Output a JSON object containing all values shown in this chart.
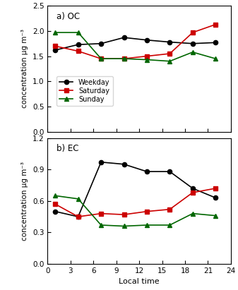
{
  "x_ticks": [
    0,
    3,
    6,
    9,
    12,
    15,
    18,
    21,
    24
  ],
  "x_values": [
    1,
    4,
    7,
    10,
    13,
    16,
    19,
    22
  ],
  "OC": {
    "weekday": [
      1.62,
      1.73,
      1.75,
      1.87,
      1.82,
      1.78,
      1.75,
      1.77
    ],
    "saturday": [
      1.7,
      1.6,
      1.45,
      1.45,
      1.5,
      1.55,
      1.97,
      2.13
    ],
    "sunday": [
      1.97,
      1.97,
      1.45,
      1.45,
      1.43,
      1.4,
      1.58,
      1.45
    ]
  },
  "EC": {
    "weekday": [
      0.5,
      0.45,
      0.97,
      0.95,
      0.88,
      0.88,
      0.72,
      0.63
    ],
    "saturday": [
      0.57,
      0.45,
      0.48,
      0.47,
      0.5,
      0.52,
      0.68,
      0.72
    ],
    "sunday": [
      0.65,
      0.62,
      0.37,
      0.36,
      0.37,
      0.37,
      0.48,
      0.46
    ]
  },
  "weekday_color": "#000000",
  "saturday_color": "#cc0000",
  "sunday_color": "#006600",
  "weekday_marker": "o",
  "saturday_marker": "s",
  "sunday_marker": "^",
  "ylabel": "concentration μg m⁻³",
  "xlabel": "Local time",
  "OC_title": "a) OC",
  "EC_title": "b) EC",
  "OC_ylim": [
    0.0,
    2.5
  ],
  "EC_ylim": [
    0.0,
    1.2
  ],
  "OC_yticks": [
    0.0,
    0.5,
    1.0,
    1.5,
    2.0,
    2.5
  ],
  "EC_yticks": [
    0.0,
    0.3,
    0.6,
    0.9,
    1.2
  ],
  "legend_labels": [
    "Weekday",
    "Saturday",
    "Sunday"
  ],
  "linewidth": 1.2,
  "markersize": 4.5
}
